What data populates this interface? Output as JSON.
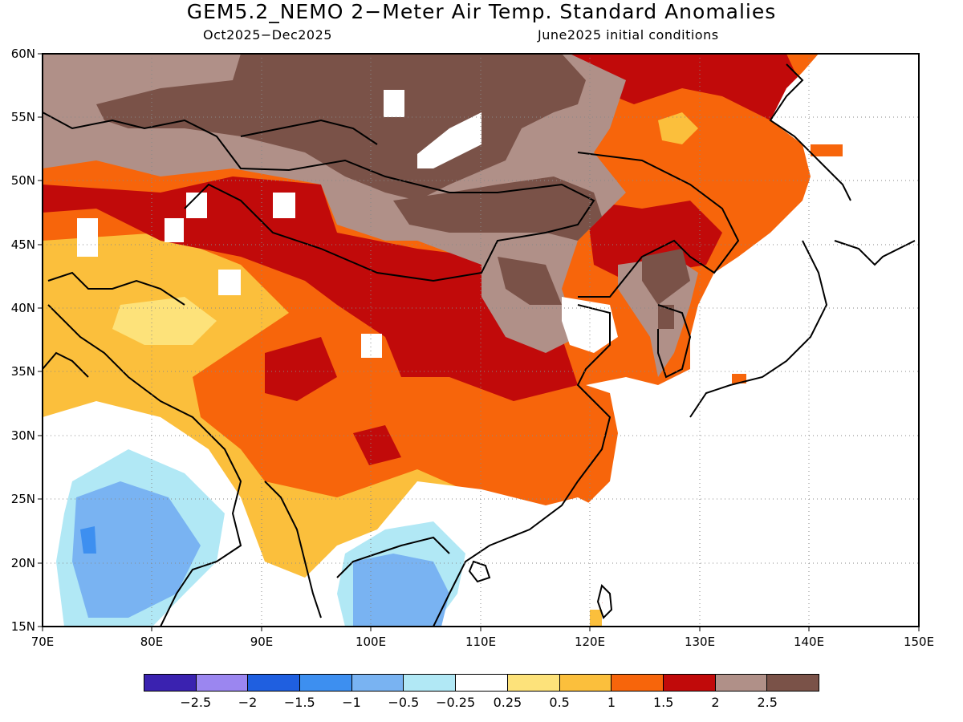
{
  "header": {
    "title": "GEM5.2_NEMO 2−Meter Air Temp. Standard Anomalies",
    "period": "Oct2025−Dec2025",
    "init": "June2025 initial conditions"
  },
  "map": {
    "lat_ticks": [
      "60N",
      "55N",
      "50N",
      "45N",
      "40N",
      "35N",
      "30N",
      "25N",
      "20N",
      "15N"
    ],
    "lon_ticks": [
      "70E",
      "80E",
      "90E",
      "100E",
      "110E",
      "120E",
      "130E",
      "140E",
      "150E"
    ],
    "lat_range": [
      15,
      60
    ],
    "lon_range": [
      70,
      150
    ],
    "grid": "dotted"
  },
  "colorbar": {
    "colors": [
      "#3a22b0",
      "#9b86f0",
      "#1f5fe0",
      "#3d8ff0",
      "#79b3f2",
      "#b1e8f5",
      "#ffffff",
      "#fde27a",
      "#fbbf3c",
      "#f7650b",
      "#c10a0a",
      "#b09088",
      "#7a5248"
    ],
    "labels": [
      "−2.5",
      "−2",
      "−1.5",
      "−1",
      "−0.5",
      "−0.25",
      "0.25",
      "0.5",
      "1",
      "1.5",
      "2",
      "2.5"
    ]
  }
}
